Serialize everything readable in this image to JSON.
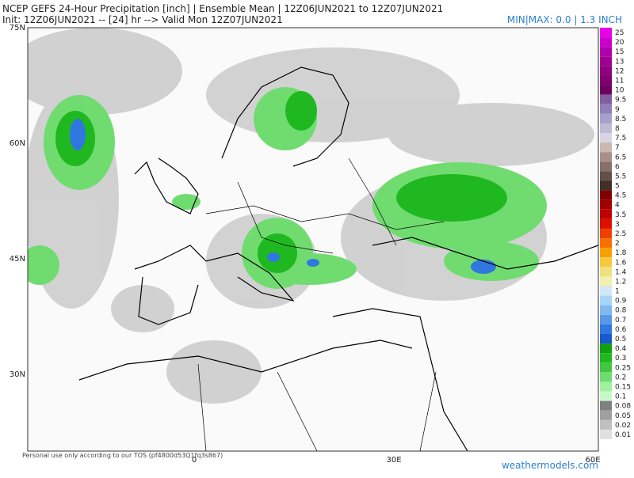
{
  "header": {
    "title": "NCEP GEFS 24-Hour Precipitation [inch] | Ensemble Mean | 12Z06JUN2021 to 12Z07JUN2021",
    "subtitle": "Init: 12Z06JUN2021 -- [24] hr --> Valid Mon 12Z07JUN2021",
    "minmax": "MIN|MAX: 0.0 | 1.3 INCH"
  },
  "map": {
    "lat_labels": [
      "75N",
      "60N",
      "45N",
      "30N"
    ],
    "lon_labels": [
      "0",
      "30E",
      "60E"
    ]
  },
  "colorbar": {
    "levels": [
      {
        "label": "25",
        "color": "#e800e8"
      },
      {
        "label": "20",
        "color": "#cc00cc"
      },
      {
        "label": "15",
        "color": "#b000b0"
      },
      {
        "label": "13",
        "color": "#a00090"
      },
      {
        "label": "12",
        "color": "#900080"
      },
      {
        "label": "11",
        "color": "#800070"
      },
      {
        "label": "10",
        "color": "#700060"
      },
      {
        "label": "9.5",
        "color": "#8060a0"
      },
      {
        "label": "9",
        "color": "#9080b8"
      },
      {
        "label": "8.5",
        "color": "#a8a0cc"
      },
      {
        "label": "8",
        "color": "#c0bcd8"
      },
      {
        "label": "7.5",
        "color": "#d8d4e4"
      },
      {
        "label": "7",
        "color": "#c8b8b0"
      },
      {
        "label": "6.5",
        "color": "#a89088"
      },
      {
        "label": "6",
        "color": "#887068"
      },
      {
        "label": "5.5",
        "color": "#605048"
      },
      {
        "label": "5",
        "color": "#403028"
      },
      {
        "label": "4.5",
        "color": "#800000"
      },
      {
        "label": "4",
        "color": "#a00000"
      },
      {
        "label": "3.5",
        "color": "#c00000"
      },
      {
        "label": "3",
        "color": "#e01000"
      },
      {
        "label": "2.5",
        "color": "#f04000"
      },
      {
        "label": "2",
        "color": "#f87000"
      },
      {
        "label": "1.8",
        "color": "#f8a000"
      },
      {
        "label": "1.6",
        "color": "#f8c840"
      },
      {
        "label": "1.4",
        "color": "#f0e080"
      },
      {
        "label": "1.2",
        "color": "#f0f0b0"
      },
      {
        "label": "1",
        "color": "#d0e8f8"
      },
      {
        "label": "0.9",
        "color": "#a8d4f8"
      },
      {
        "label": "0.8",
        "color": "#80b8f0"
      },
      {
        "label": "0.7",
        "color": "#5898e8"
      },
      {
        "label": "0.6",
        "color": "#3078e0"
      },
      {
        "label": "0.5",
        "color": "#1858d0"
      },
      {
        "label": "0.4",
        "color": "#10a010"
      },
      {
        "label": "0.3",
        "color": "#20b820"
      },
      {
        "label": "0.25",
        "color": "#40c840"
      },
      {
        "label": "0.2",
        "color": "#70dc70"
      },
      {
        "label": "0.15",
        "color": "#a0f0a0"
      },
      {
        "label": "0.1",
        "color": "#c8f8c8"
      },
      {
        "label": "0.08",
        "color": "#808080"
      },
      {
        "label": "0.05",
        "color": "#a0a0a0"
      },
      {
        "label": "0.02",
        "color": "#c0c0c0"
      },
      {
        "label": "0.01",
        "color": "#e0e0e0"
      }
    ]
  },
  "footer": {
    "tos": "Personal use only according to our TOS (pf4800d53Q1fq3s867)",
    "site": "weathermodels.com"
  }
}
